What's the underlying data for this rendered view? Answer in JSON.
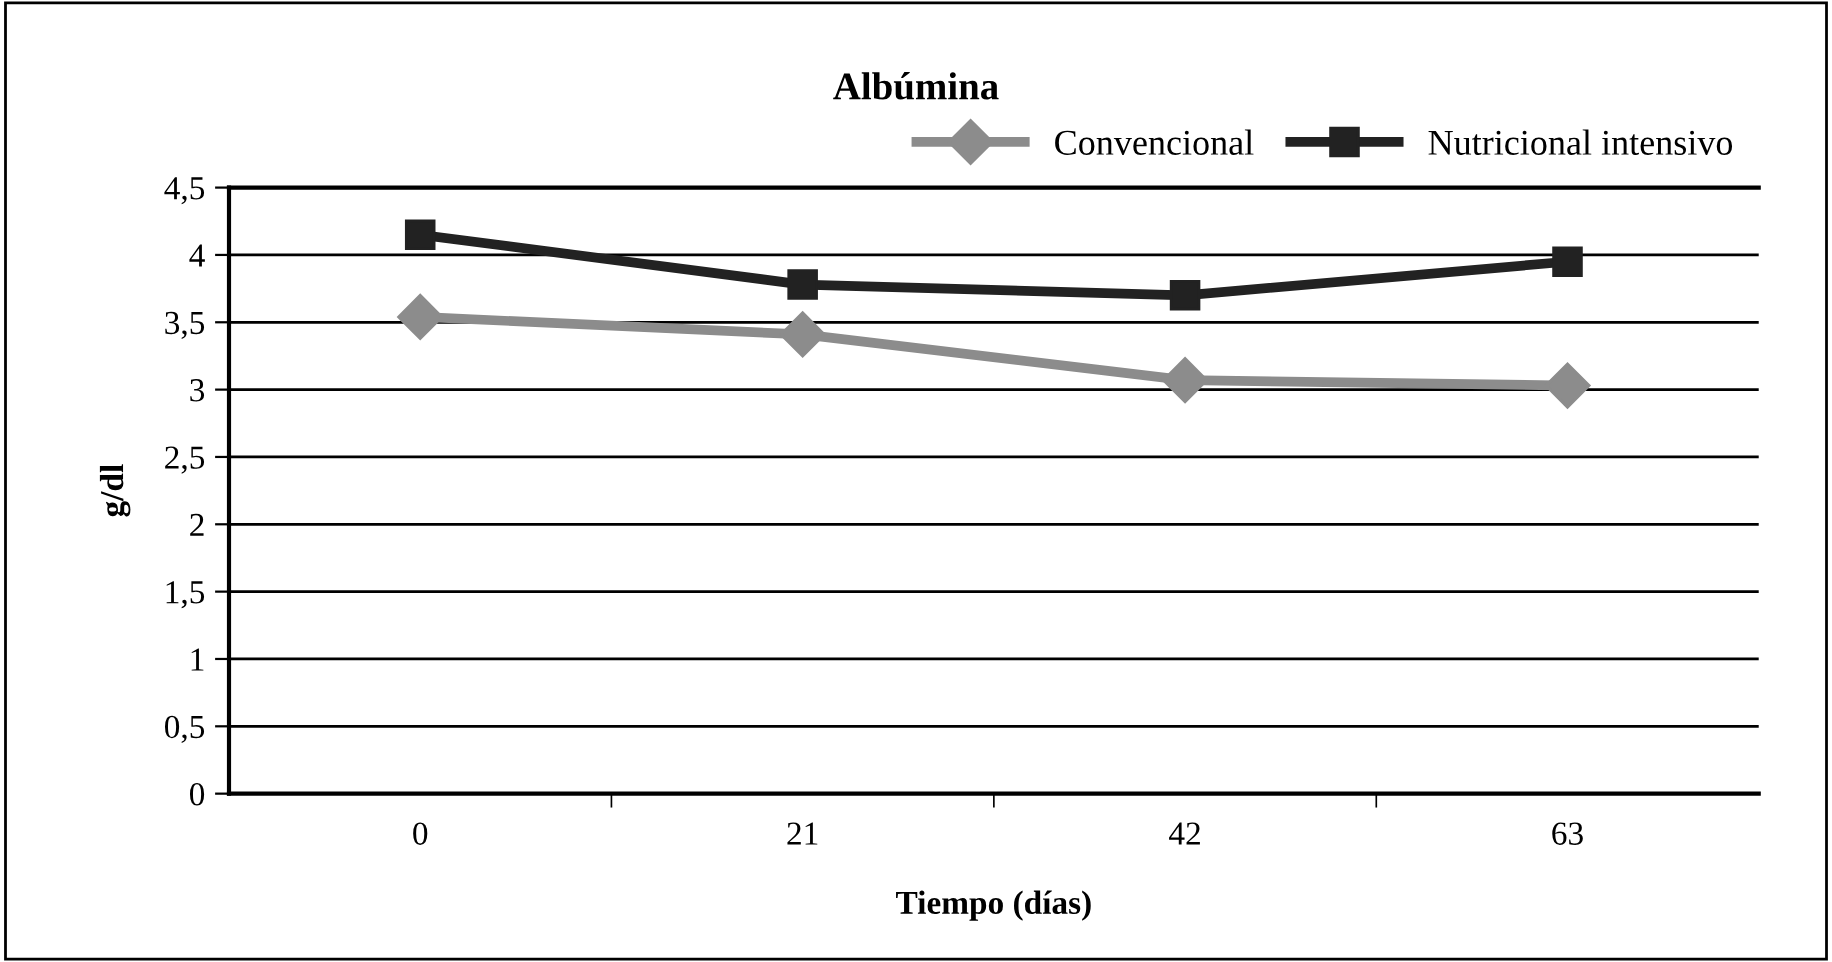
{
  "chart_data": {
    "type": "line",
    "title": "Albúmina",
    "xlabel": "Tiempo (días)",
    "ylabel": "g/dl",
    "categories": [
      "0",
      "21",
      "42",
      "63"
    ],
    "series": [
      {
        "name": "Convencional",
        "color": "#8c8c8c",
        "marker": "diamond",
        "values": [
          3.54,
          3.41,
          3.07,
          3.03
        ]
      },
      {
        "name": "Nutricional intensivo",
        "color": "#222222",
        "marker": "square",
        "values": [
          4.15,
          3.78,
          3.7,
          3.95
        ]
      }
    ],
    "ylim": [
      0,
      4.5
    ],
    "yticks": [
      0,
      {
        "value": 0.5,
        "label": "0,5"
      },
      1,
      {
        "value": 1.5,
        "label": "1,5"
      },
      2,
      {
        "value": 2.5,
        "label": "2,5"
      },
      3,
      {
        "value": 3.5,
        "label": "3,5"
      },
      4,
      {
        "value": 4.5,
        "label": "4,5"
      }
    ],
    "grid": "y",
    "legend": "top right",
    "line_style": "solid"
  }
}
